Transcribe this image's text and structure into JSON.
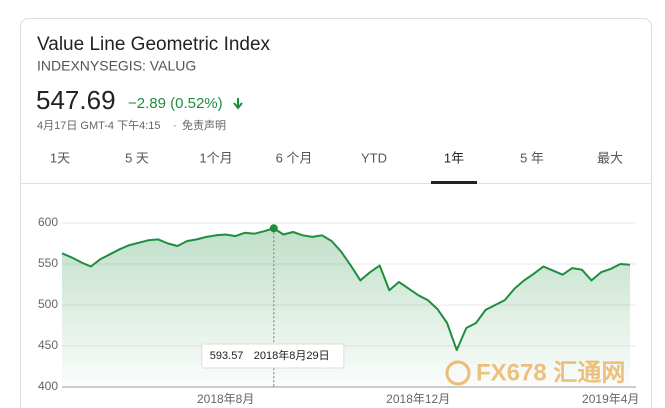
{
  "header": {
    "title": "Value Line Geometric Index",
    "ticker": "INDEXNYSEGIS: VALUG",
    "price": "547.69",
    "change": "−2.89 (0.52%)",
    "timestamp": "4月17日 GMT-4 下午4:15",
    "disclaimer": "免责声明"
  },
  "tabs": [
    "1天",
    "5 天",
    "1个月",
    "6 个月",
    "YTD",
    "1年",
    "5 年",
    "最大"
  ],
  "selected_tab": 5,
  "chart_data": {
    "type": "line",
    "categories": [
      null,
      null,
      null,
      null,
      null,
      null,
      null,
      null,
      null,
      null,
      null,
      null,
      null,
      null,
      null,
      null,
      null,
      "2018年8月",
      null,
      null,
      null,
      null,
      null,
      null,
      null,
      null,
      null,
      null,
      null,
      null,
      null,
      null,
      null,
      null,
      null,
      null,
      null,
      "2018年12月",
      null,
      null,
      null,
      null,
      null,
      null,
      null,
      null,
      null,
      null,
      null,
      null,
      null,
      null,
      null,
      null,
      null,
      null,
      null,
      "2019年4月",
      null,
      null
    ],
    "series": [
      {
        "name": "VALUG",
        "color": "#1e8e3e",
        "values": [
          563,
          558,
          552,
          547,
          556,
          562,
          568,
          573,
          576,
          579,
          580,
          575,
          572,
          578,
          580,
          583,
          585,
          586,
          584,
          588,
          587,
          590,
          593.57,
          586,
          589,
          585,
          583,
          585,
          578,
          565,
          548,
          530,
          540,
          548,
          518,
          528,
          520,
          512,
          506,
          495,
          478,
          445,
          472,
          478,
          494,
          500,
          506,
          520,
          530,
          538,
          547,
          542,
          537,
          545,
          543,
          530,
          540,
          544,
          550,
          549
        ]
      }
    ],
    "ylim": [
      400,
      600
    ],
    "yticks": [
      400,
      450,
      500,
      550,
      600
    ],
    "grid": true,
    "tooltip_date": "2018年8月29日"
  },
  "watermark": "FX678 汇通网"
}
